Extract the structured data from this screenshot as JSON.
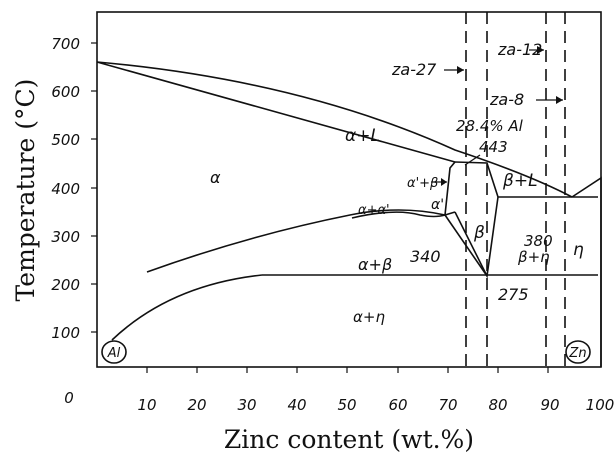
{
  "axes": {
    "xlabel": "Zinc content (wt.%)",
    "ylabel": "Temperature (°C)",
    "x_ticks": [
      "0",
      "10",
      "20",
      "30",
      "40",
      "50",
      "60",
      "70",
      "80",
      "90",
      "100"
    ],
    "y_ticks": [
      "100",
      "200",
      "300",
      "400",
      "500",
      "600",
      "700"
    ],
    "x_range": [
      0,
      100
    ],
    "y_range": [
      0,
      760
    ]
  },
  "endpoints": {
    "left": "Al",
    "right": "Zn"
  },
  "phase_labels": {
    "alpha": "α",
    "alpha_L": "α+L",
    "alpha1_beta": "α'+β",
    "alpha_alpha1": "α+α'",
    "alpha1": "α'",
    "alpha_beta": "α+β",
    "beta": "β",
    "beta_L": "β+L",
    "beta_eta": "β+η",
    "eta": "η",
    "alpha_eta": "α+η"
  },
  "temperatures": {
    "t443": "443",
    "t380": "380",
    "t340": "340",
    "t275": "275"
  },
  "composition_note": "28.4% Al",
  "alloys": {
    "za27": "za-27",
    "za12": "za-12",
    "za8": "za-8"
  }
}
